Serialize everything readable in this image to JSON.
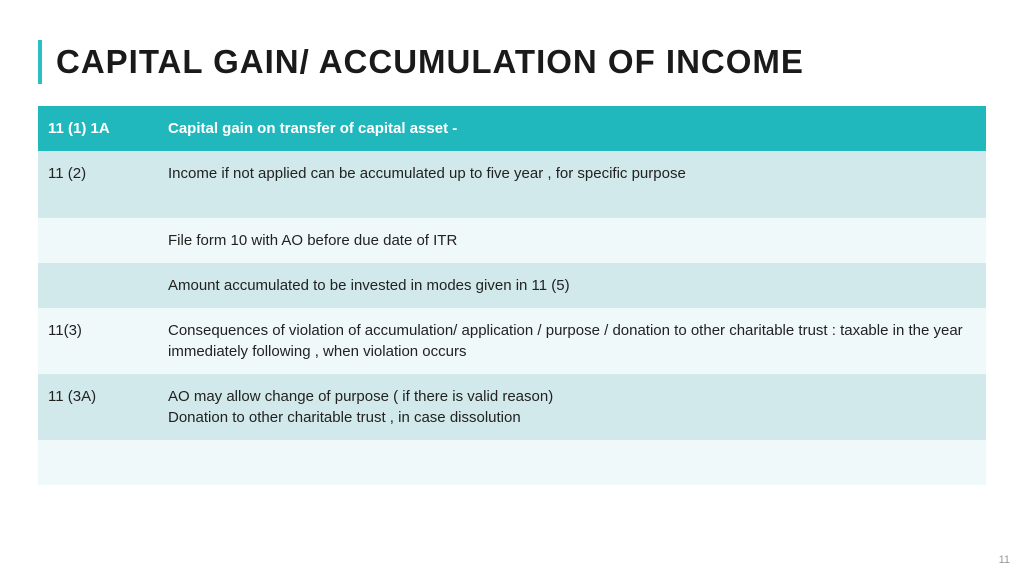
{
  "title": "CAPITAL GAIN/ ACCUMULATION OF INCOME",
  "header_bg": "#21b8bd",
  "row_dark_bg": "#d1e9eb",
  "row_light_bg": "#f0f9fa",
  "table": {
    "header": {
      "c1": "11 (1) 1A",
      "c2": "Capital gain on transfer of capital asset -"
    },
    "rows": [
      {
        "c1": "11 (2)",
        "c2": "Income if not applied can be accumulated up to five year , for specific purpose",
        "shade": "dark",
        "tall": true
      },
      {
        "c1": "",
        "c2": "File form 10 with AO before due date of ITR",
        "shade": "light"
      },
      {
        "c1": "",
        "c2": "Amount accumulated to be invested in modes given in 11 (5)",
        "shade": "dark"
      },
      {
        "c1": "11(3)",
        "c2": "Consequences of violation of accumulation/ application / purpose / donation to other charitable trust : taxable in the year immediately following , when violation occurs",
        "shade": "light"
      },
      {
        "c1": "11 (3A)",
        "c2": "AO may allow change of purpose ( if there is valid reason)\n Donation to other charitable trust , in case dissolution",
        "shade": "dark"
      },
      {
        "c1": "",
        "c2": "",
        "shade": "light"
      }
    ]
  },
  "page_number": "11"
}
